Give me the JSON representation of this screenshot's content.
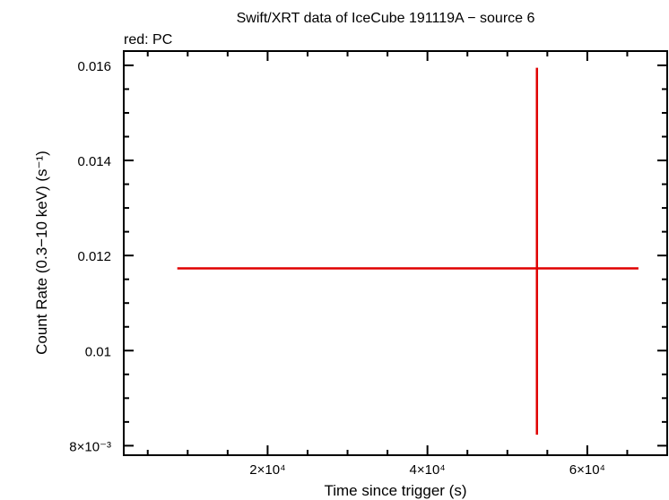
{
  "chart_data": {
    "type": "scatter",
    "title": "Swift/XRT data of IceCube 191119A − source 6",
    "subtitle": "red: PC",
    "xlabel": "Time since trigger (s)",
    "ylabel": "Count Rate (0.3−10 keV) (s⁻¹)",
    "xlim": [
      2000,
      70000
    ],
    "ylim": [
      0.0078,
      0.0163
    ],
    "x_ticks": [
      {
        "value": 20000,
        "label": "2×10⁴"
      },
      {
        "value": 40000,
        "label": "4×10⁴"
      },
      {
        "value": 60000,
        "label": "6×10⁴"
      }
    ],
    "y_ticks": [
      {
        "value": 0.008,
        "label": "8×10⁻³"
      },
      {
        "value": 0.01,
        "label": "0.01"
      },
      {
        "value": 0.012,
        "label": "0.012"
      },
      {
        "value": 0.014,
        "label": "0.014"
      },
      {
        "value": 0.016,
        "label": "0.016"
      }
    ],
    "series": [
      {
        "name": "PC",
        "color": "#e00000",
        "points": [
          {
            "x": 53700,
            "y": 0.01173,
            "x_err_low": 45000,
            "x_err_high": 12700,
            "y_err_low": 0.0035,
            "y_err_high": 0.00422
          }
        ]
      }
    ],
    "grid": false,
    "legend": "top-left"
  }
}
